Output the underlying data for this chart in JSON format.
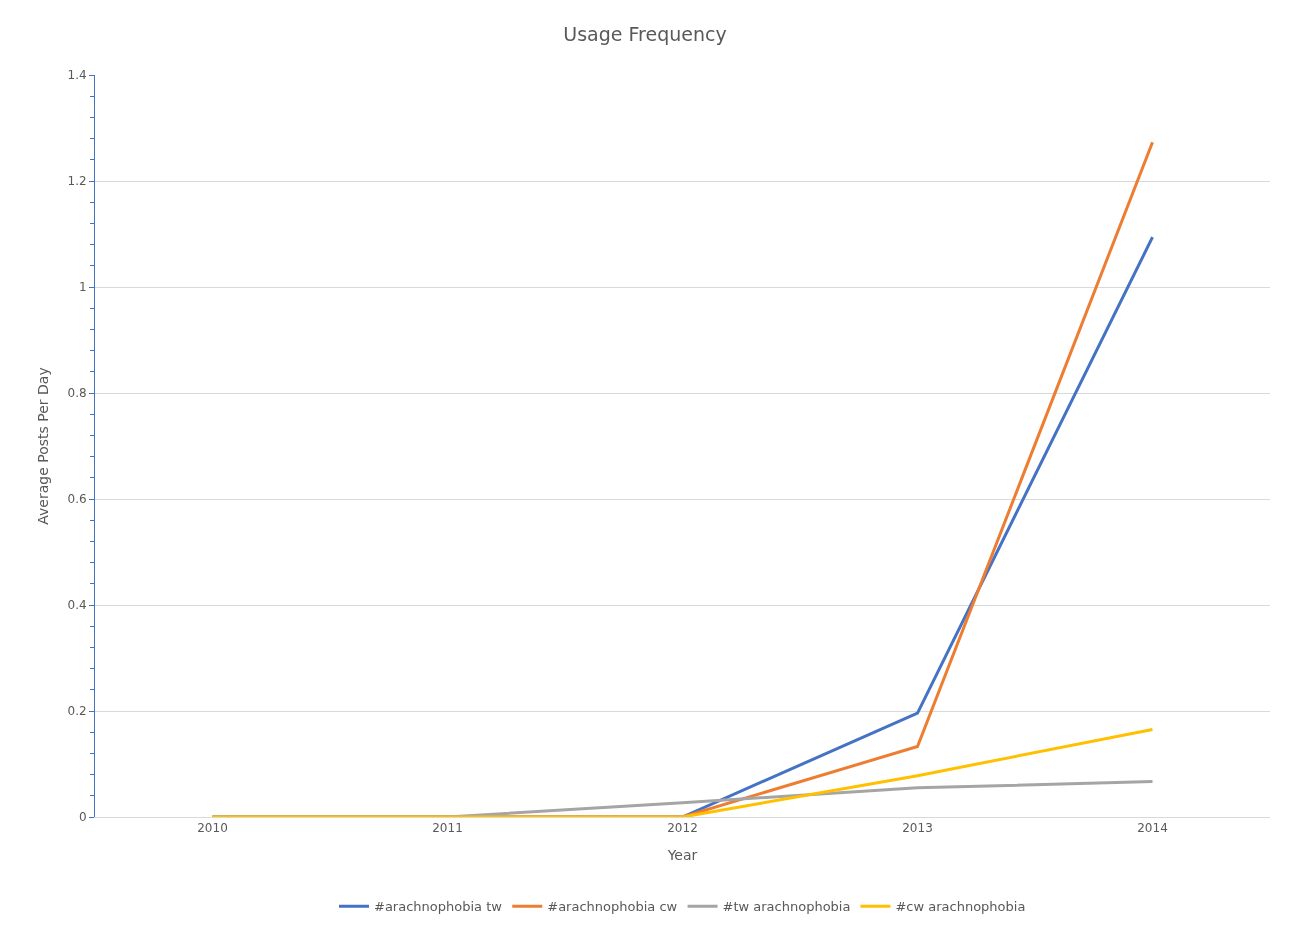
{
  "chart_data": {
    "type": "line",
    "title": "Usage Frequency",
    "xlabel": "Year",
    "ylabel": "Average Posts Per Day",
    "categories": [
      "2010",
      "2011",
      "2012",
      "2013",
      "2014"
    ],
    "series": [
      {
        "name": "#arachnophobia tw",
        "color": "#4472c4",
        "values": [
          0,
          0,
          0,
          0.196,
          1.094
        ]
      },
      {
        "name": "#arachnophobia cw",
        "color": "#ed7d31",
        "values": [
          0,
          0,
          0,
          0.133,
          1.273
        ]
      },
      {
        "name": "#tw arachnophobia",
        "color": "#a5a5a5",
        "values": [
          0,
          0,
          0.027,
          0.055,
          0.067
        ]
      },
      {
        "name": "#cw arachnophobia",
        "color": "#ffc000",
        "values": [
          0,
          0,
          0,
          0.078,
          0.165
        ]
      }
    ],
    "ylim": [
      0,
      1.4
    ],
    "yticks": [
      0,
      0.2,
      0.4,
      0.6,
      0.8,
      1,
      1.2,
      1.4
    ],
    "grid": "y",
    "legend": "bottom",
    "marker": "none",
    "line_style": "solid"
  }
}
